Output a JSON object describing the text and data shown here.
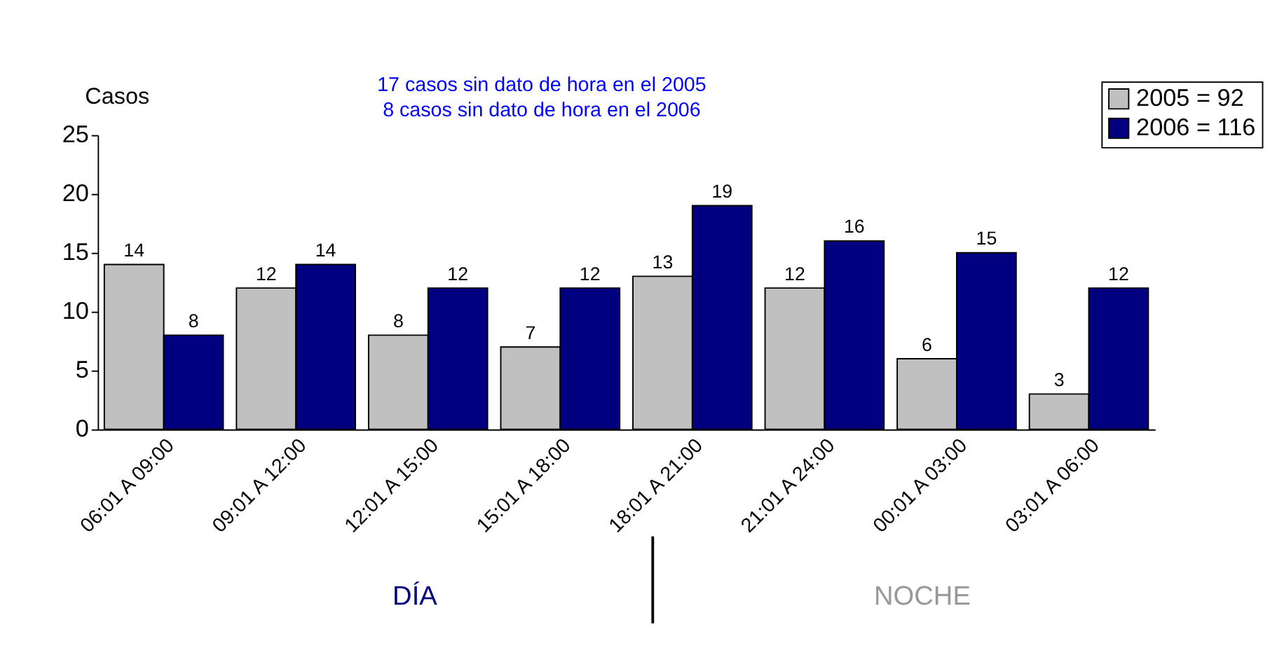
{
  "chart_data": {
    "type": "bar",
    "ylabel": "Casos",
    "categories": [
      "06:01 A  09:00",
      "09:01 A  12:00",
      "12:01 A  15:00",
      "15:01 A  18:00",
      "18:01 A  21:00",
      "21:01 A  24:00",
      "00:01 A  03:00",
      "03:01 A  06:00"
    ],
    "series": [
      {
        "name": "2005 = 92",
        "color": "#c0c0c0",
        "values": [
          14,
          12,
          8,
          7,
          13,
          12,
          6,
          3
        ]
      },
      {
        "name": "2006 = 116",
        "color": "#000080",
        "values": [
          8,
          14,
          12,
          12,
          19,
          16,
          15,
          12
        ]
      }
    ],
    "ylim": [
      0,
      25
    ],
    "yticks": [
      0,
      5,
      10,
      15,
      20,
      25
    ],
    "grid": false,
    "legend": "top right",
    "data_labels": true,
    "annotations": [
      "17 casos sin dato de hora en el 2005",
      "8 casos sin dato de hora en el 2006",
      "DÍA",
      "NOCHE"
    ]
  }
}
